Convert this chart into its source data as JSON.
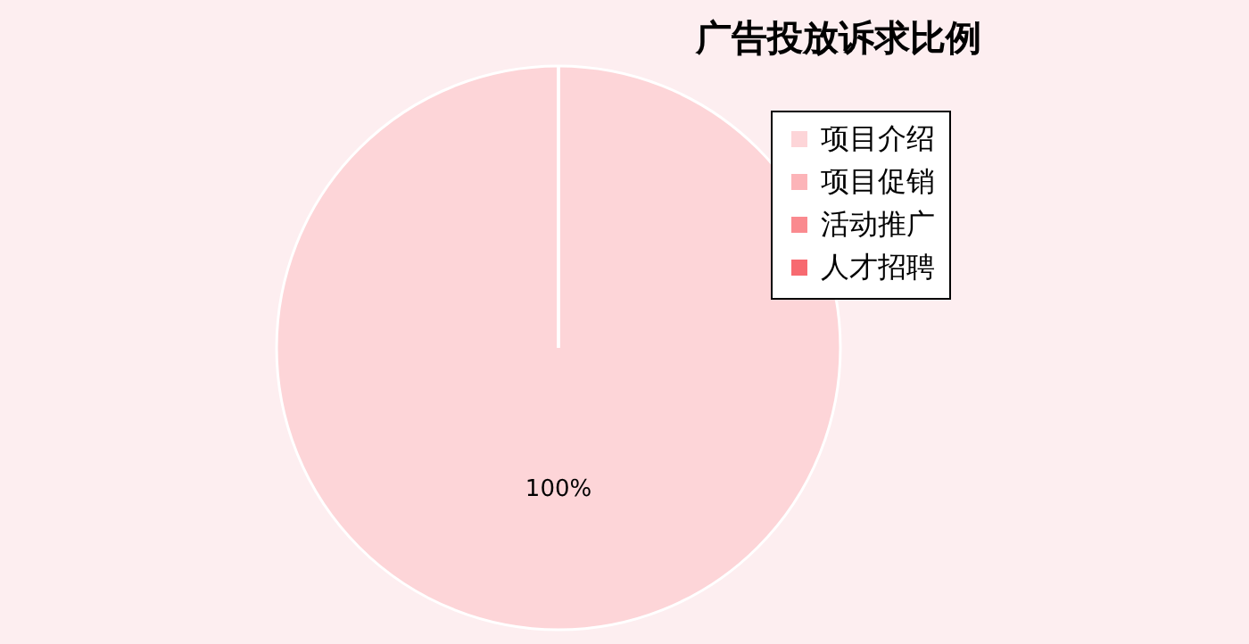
{
  "chart_data": {
    "type": "pie",
    "title": "广告投放诉求比例",
    "categories": [
      "项目介绍",
      "项目促销",
      "活动推广",
      "人才招聘"
    ],
    "values": [
      100,
      0,
      0,
      0
    ],
    "colors": [
      "#fdd5d8",
      "#fcb4b8",
      "#fa8a8f",
      "#f76a70"
    ],
    "value_labels": [
      "100%",
      null,
      null,
      null
    ],
    "legend": "top right"
  }
}
